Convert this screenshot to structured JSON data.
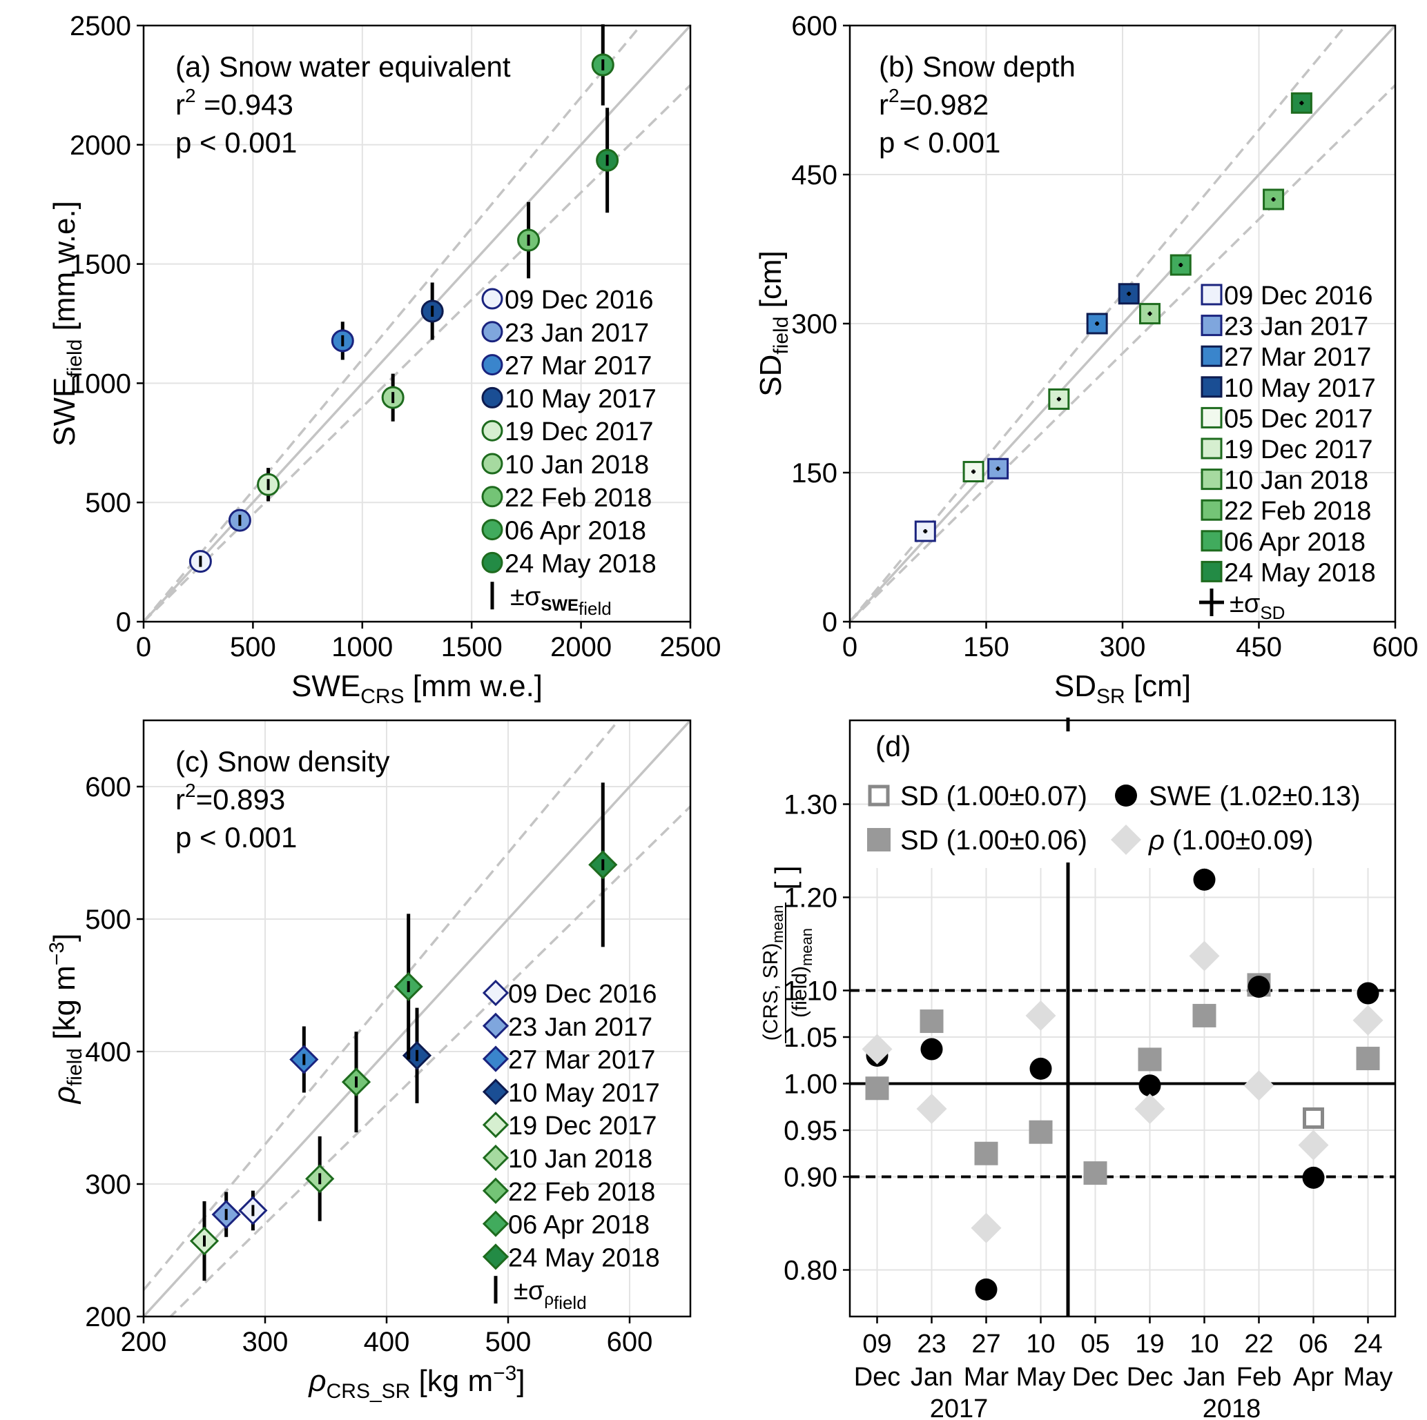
{
  "chart_data": [
    {
      "panel": "a",
      "type": "scatter",
      "title_lines": [
        "(a) Snow water equivalent",
        "r",
        "2",
        " =0.943",
        "p  < 0.001"
      ],
      "xlabel": {
        "main": "SWE",
        "sub": "CRS",
        "rest": " [mm w.e.]"
      },
      "ylabel": {
        "main": "SWE",
        "sub": "field",
        "rest": " [mm w.e.]"
      },
      "xlim": [
        0,
        2500
      ],
      "ylim": [
        0,
        2500
      ],
      "xticks": [
        0,
        500,
        1000,
        1500,
        2000,
        2500
      ],
      "yticks": [
        0,
        500,
        1000,
        1500,
        2000,
        2500
      ],
      "xtick_labels": [
        "0",
        "500",
        "1000",
        "1500",
        "2000",
        "2500"
      ],
      "ytick_labels": [
        "0",
        "500",
        "1000",
        "1500",
        "2000",
        "2500"
      ],
      "grid": true,
      "one_to_one_line": true,
      "bounds_lines": [
        0.9,
        1.1
      ],
      "legend_placement": "lower-right",
      "points": [
        {
          "label": "09 Dec 2016",
          "x": 260,
          "y": 253,
          "err": 25,
          "color": "#eef2fb",
          "edge": "#1a237e"
        },
        {
          "label": "23 Jan 2017",
          "x": 440,
          "y": 425,
          "err": 30,
          "color": "#7fa6dd",
          "edge": "#1a237e"
        },
        {
          "label": "27 Mar 2017",
          "x": 910,
          "y": 1178,
          "err": 80,
          "color": "#3a85cc",
          "edge": "#1a237e"
        },
        {
          "label": "10 May 2017",
          "x": 1320,
          "y": 1302,
          "err": 120,
          "color": "#1a4e94",
          "edge": "#0d1b4f"
        },
        {
          "label": "19 Dec 2017",
          "x": 570,
          "y": 575,
          "err": 70,
          "color": "#d6efd0",
          "edge": "#1e6b1e"
        },
        {
          "label": "10 Jan 2018",
          "x": 1140,
          "y": 940,
          "err": 100,
          "color": "#a6daa0",
          "edge": "#1e6b1e"
        },
        {
          "label": "22 Feb 2018",
          "x": 1760,
          "y": 1600,
          "err": 160,
          "color": "#74c476",
          "edge": "#1e6b1e"
        },
        {
          "label": "06 Apr 2018",
          "x": 2100,
          "y": 2335,
          "err": 170,
          "color": "#41ab5d",
          "edge": "#1e6b1e"
        },
        {
          "label": "24 May 2018",
          "x": 2120,
          "y": 1935,
          "err": 220,
          "color": "#238b45",
          "edge": "#1e6b1e"
        }
      ],
      "legend_error": {
        "prefix": "±σ",
        "sym": "SWE",
        "sub": "field"
      }
    },
    {
      "panel": "b",
      "type": "scatter",
      "title_lines": [
        "(b) Snow depth",
        "r",
        "2",
        "=0.982",
        "p  < 0.001"
      ],
      "xlabel": {
        "main": "SD",
        "sub": "SR",
        "rest": " [cm]"
      },
      "ylabel": {
        "main": "SD",
        "sub": "field",
        "rest": " [cm]"
      },
      "xlim": [
        0,
        600
      ],
      "ylim": [
        0,
        600
      ],
      "xticks": [
        0,
        150,
        300,
        450,
        600
      ],
      "yticks": [
        0,
        150,
        300,
        450,
        600
      ],
      "xtick_labels": [
        "0",
        "150",
        "300",
        "450",
        "600"
      ],
      "ytick_labels": [
        "0",
        "150",
        "300",
        "450",
        "600"
      ],
      "grid": true,
      "one_to_one_line": true,
      "bounds_lines": [
        0.9,
        1.1
      ],
      "legend_placement": "lower-right",
      "points": [
        {
          "label": "09 Dec 2016",
          "x": 83,
          "y": 91,
          "err": 2,
          "color": "#eef2fb",
          "edge": "#1a237e"
        },
        {
          "label": "23 Jan 2017",
          "x": 163,
          "y": 154,
          "err": 2,
          "color": "#7fa6dd",
          "edge": "#1a237e"
        },
        {
          "label": "27 Mar 2017",
          "x": 272,
          "y": 300,
          "err": 3,
          "color": "#3a85cc",
          "edge": "#0d1b4f"
        },
        {
          "label": "10 May 2017",
          "x": 307,
          "y": 330,
          "err": 4,
          "color": "#1a4e94",
          "edge": "#0d1b4f"
        },
        {
          "label": "05 Dec 2017",
          "x": 136,
          "y": 151,
          "err": 2,
          "color": "#f1f9ee",
          "edge": "#1e6b1e"
        },
        {
          "label": "19 Dec 2017",
          "x": 230,
          "y": 224,
          "err": 2,
          "color": "#d6efd0",
          "edge": "#1e6b1e"
        },
        {
          "label": "10 Jan 2018",
          "x": 330,
          "y": 310,
          "err": 2,
          "color": "#a6daa0",
          "edge": "#1e6b1e"
        },
        {
          "label": "22 Feb 2018",
          "x": 466,
          "y": 425,
          "err": 2,
          "color": "#74c476",
          "edge": "#1e6b1e"
        },
        {
          "label": "06 Apr 2018",
          "x": 364,
          "y": 359,
          "err": 2,
          "color": "#41ab5d",
          "edge": "#1e6b1e"
        },
        {
          "label": "24 May 2018",
          "x": 497,
          "y": 522,
          "err": 5,
          "color": "#238b45",
          "edge": "#1e6b1e"
        }
      ],
      "legend_error": {
        "prefix": "±σ",
        "sub": "SD"
      }
    },
    {
      "panel": "c",
      "type": "scatter",
      "title_lines": [
        "(c) Snow density",
        "r",
        "2",
        "=0.893",
        "p  < 0.001"
      ],
      "xlabel": {
        "main": "ρ",
        "sub": "CRS_SR",
        "rest": " [kg m",
        "sup": "−3",
        "end": "]"
      },
      "ylabel": {
        "main": "ρ",
        "sub": "field",
        "rest": " [kg m",
        "sup": "−3",
        "end": "]"
      },
      "xlim": [
        200,
        650
      ],
      "ylim": [
        200,
        650
      ],
      "xticks": [
        200,
        300,
        400,
        500,
        600
      ],
      "yticks": [
        200,
        300,
        400,
        500,
        600
      ],
      "xtick_labels": [
        "200",
        "300",
        "400",
        "500",
        "600"
      ],
      "ytick_labels": [
        "200",
        "300",
        "400",
        "500",
        "600"
      ],
      "grid": true,
      "one_to_one_line": true,
      "bounds_lines": [
        0.9,
        1.1
      ],
      "legend_placement": "lower-right",
      "points": [
        {
          "label": "09 Dec 2016",
          "x": 290,
          "y": 280,
          "err": 15,
          "color": "#eef2fb",
          "edge": "#1a237e"
        },
        {
          "label": "23 Jan 2017",
          "x": 268,
          "y": 277,
          "err": 17,
          "color": "#7fa6dd",
          "edge": "#1a237e"
        },
        {
          "label": "27 Mar 2017",
          "x": 332,
          "y": 394,
          "err": 25,
          "color": "#3a85cc",
          "edge": "#1a237e"
        },
        {
          "label": "10 May 2017",
          "x": 425,
          "y": 397,
          "err": 36,
          "color": "#1a4e94",
          "edge": "#0d1b4f"
        },
        {
          "label": "19 Dec 2017",
          "x": 250,
          "y": 257,
          "err": 30,
          "color": "#d6efd0",
          "edge": "#1e6b1e"
        },
        {
          "label": "10 Jan 2018",
          "x": 345,
          "y": 304,
          "err": 32,
          "color": "#a6daa0",
          "edge": "#1e6b1e"
        },
        {
          "label": "22 Feb 2018",
          "x": 375,
          "y": 377,
          "err": 38,
          "color": "#74c476",
          "edge": "#1e6b1e"
        },
        {
          "label": "06 Apr 2018",
          "x": 418,
          "y": 449,
          "err": 55,
          "color": "#41ab5d",
          "edge": "#1e6b1e"
        },
        {
          "label": "24 May 2018",
          "x": 578,
          "y": 541,
          "err": 62,
          "color": "#238b45",
          "edge": "#1e6b1e"
        }
      ],
      "legend_error": {
        "prefix": "±σ",
        "sym": "ρ",
        "sub": "field"
      }
    },
    {
      "panel": "d",
      "type": "scatter",
      "title": "(d)",
      "ylabel": {
        "num": "(CRS, SR)",
        "num_sub": "mean",
        "den": "(field)",
        "den_sub": "mean",
        "unit": "[ ]"
      },
      "ylim": [
        0.75,
        1.39
      ],
      "yticks": [
        0.8,
        0.9,
        0.95,
        1.0,
        1.05,
        1.1,
        1.2,
        1.3
      ],
      "ytick_labels": [
        "0.80",
        "0.90",
        "0.95",
        "1.00",
        "1.05",
        "1.10",
        "1.20",
        "1.30"
      ],
      "categories": [
        {
          "day": "09",
          "month": "Dec"
        },
        {
          "day": "23",
          "month": "Jan"
        },
        {
          "day": "27",
          "month": "Mar"
        },
        {
          "day": "10",
          "month": "May"
        },
        {
          "day": "05",
          "month": "Dec"
        },
        {
          "day": "19",
          "month": "Dec"
        },
        {
          "day": "10",
          "month": "Jan"
        },
        {
          "day": "22",
          "month": "Feb"
        },
        {
          "day": "06",
          "month": "Apr"
        },
        {
          "day": "24",
          "month": "May"
        }
      ],
      "year_labels": [
        {
          "text": "2017",
          "center": 1.5
        },
        {
          "text": "2018",
          "center": 6.5
        }
      ],
      "divider_after_index": 3.5,
      "reference_lines": {
        "solid": 1.0,
        "dashed": [
          0.9,
          1.1
        ]
      },
      "grid": true,
      "legend_placement": "top",
      "series": [
        {
          "name": "SD (1.00±0.07)",
          "marker": "square-open",
          "color": "#888888",
          "values": [
            null,
            null,
            null,
            null,
            null,
            null,
            null,
            null,
            0.963,
            null
          ]
        },
        {
          "name": "SWE (1.02±0.13)",
          "marker": "circle",
          "color": "#000000",
          "values": [
            1.03,
            1.037,
            0.779,
            1.016,
            null,
            0.998,
            1.219,
            1.104,
            0.899,
            1.097
          ]
        },
        {
          "name": "SD (1.00±0.06)",
          "marker": "square",
          "color": "#999999",
          "values": [
            0.995,
            1.067,
            0.925,
            0.948,
            0.904,
            1.026,
            1.073,
            1.106,
            null,
            1.027
          ]
        },
        {
          "name": "ρ (1.00±0.09)",
          "marker": "diamond",
          "color": "#dddddd",
          "values": [
            1.037,
            0.973,
            0.845,
            1.073,
            null,
            0.973,
            1.137,
            0.998,
            0.934,
            1.068
          ]
        }
      ]
    }
  ]
}
